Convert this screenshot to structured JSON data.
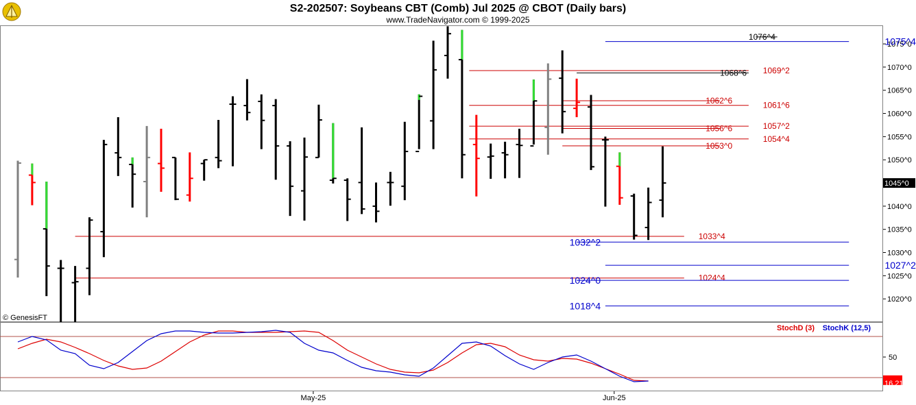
{
  "header": {
    "title": "S2-202507:  Soybeans CBT (Comb) Jul 2025 @ CBOT  (Daily bars)",
    "subtitle": "www.TradeNavigator.com © 1999-2025"
  },
  "copyright": "© GenesisFT",
  "colors": {
    "up": "#000000",
    "gray": "#808080",
    "red": "#ff0000",
    "green": "#33dd33",
    "res": "#cc0000",
    "sup": "#0000cc",
    "stochD": "#dd0000",
    "stochK": "#0000cc"
  },
  "chart_data": [
    {
      "type": "bar",
      "title": "S2-202507:  Soybeans CBT (Comb) Jul 2025 @ CBOT  (Daily bars)",
      "ylim": [
        1015,
        1079
      ],
      "y_ticks": [
        "1075^0",
        "1070^0",
        "1065^0",
        "1060^0",
        "1055^0",
        "1050^0",
        "1045^0",
        "1040^0",
        "1035^0",
        "1030^0",
        "1025^0",
        "1020^0"
      ],
      "x_labels": [
        {
          "label": "May-25",
          "bar": 21
        },
        {
          "label": "Jun-25",
          "bar": 42
        }
      ],
      "last_price": "1045^0",
      "bars": [
        {
          "h": 1049.8,
          "l": 1024.6,
          "o": 1028.5,
          "c": 1049.3,
          "color": "gray"
        },
        {
          "h": 1049.2,
          "l": 1040.2,
          "o": 1046.7,
          "c": 1045.1,
          "color": "red",
          "tip": "green"
        },
        {
          "h": 1045.3,
          "l": 1020.6,
          "o": 1035.1,
          "c": 1027.1,
          "color": "black",
          "tip": "green"
        },
        {
          "h": 1028.4,
          "l": 1014.0,
          "o": 1026.6,
          "c": 1026.6,
          "color": "black"
        },
        {
          "h": 1027.1,
          "l": 1014.0,
          "o": 1023.5,
          "c": 1023.7,
          "color": "black"
        },
        {
          "h": 1037.6,
          "l": 1020.8,
          "o": 1026.6,
          "c": 1037.0,
          "color": "black"
        },
        {
          "h": 1054.3,
          "l": 1029.0,
          "o": 1034.5,
          "c": 1053.3,
          "color": "black"
        },
        {
          "h": 1059.2,
          "l": 1046.5,
          "o": 1051.5,
          "c": 1050.5,
          "color": "black"
        },
        {
          "h": 1050.5,
          "l": 1039.7,
          "o": 1049.0,
          "c": 1046.9,
          "color": "black",
          "tip": "green"
        },
        {
          "h": 1057.3,
          "l": 1037.6,
          "o": 1045.3,
          "c": 1050.5,
          "color": "gray"
        },
        {
          "h": 1056.7,
          "l": 1043.1,
          "o": 1049.2,
          "c": 1048.2,
          "color": "red"
        },
        {
          "h": 1050.5,
          "l": 1041.3,
          "o": 1050.5,
          "c": 1041.5,
          "color": "black"
        },
        {
          "h": 1051.6,
          "l": 1041.0,
          "o": 1042.4,
          "c": 1046.0,
          "color": "red"
        },
        {
          "h": 1050.0,
          "l": 1045.5,
          "o": 1049.2,
          "c": 1050.0,
          "color": "black"
        },
        {
          "h": 1058.6,
          "l": 1048.2,
          "o": 1050.5,
          "c": 1049.8,
          "color": "black"
        },
        {
          "h": 1063.7,
          "l": 1048.6,
          "o": 1062.0,
          "c": 1062.0,
          "color": "black"
        },
        {
          "h": 1067.4,
          "l": 1058.5,
          "o": 1061.7,
          "c": 1060.2,
          "color": "black"
        },
        {
          "h": 1064.1,
          "l": 1052.3,
          "o": 1062.6,
          "c": 1058.5,
          "color": "black"
        },
        {
          "h": 1063.1,
          "l": 1045.7,
          "o": 1061.7,
          "c": 1053.0,
          "color": "black"
        },
        {
          "h": 1054.0,
          "l": 1037.9,
          "o": 1053.0,
          "c": 1044.3,
          "color": "black"
        },
        {
          "h": 1054.8,
          "l": 1036.9,
          "o": 1043.3,
          "c": 1050.6,
          "color": "black"
        },
        {
          "h": 1061.9,
          "l": 1050.5,
          "o": 1050.5,
          "c": 1058.6,
          "color": "black"
        },
        {
          "h": 1057.9,
          "l": 1044.9,
          "o": 1045.6,
          "c": 1046.0,
          "color": "black",
          "tip": "green"
        },
        {
          "h": 1046.0,
          "l": 1036.8,
          "o": 1045.6,
          "c": 1041.5,
          "color": "black"
        },
        {
          "h": 1057.0,
          "l": 1038.3,
          "o": 1045.1,
          "c": 1039.4,
          "color": "black"
        },
        {
          "h": 1045.1,
          "l": 1036.5,
          "o": 1040.0,
          "c": 1038.9,
          "color": "black"
        },
        {
          "h": 1047.4,
          "l": 1040.1,
          "o": 1045.1,
          "c": 1045.1,
          "color": "black"
        },
        {
          "h": 1058.2,
          "l": 1041.3,
          "o": 1044.3,
          "c": 1051.8,
          "color": "black"
        },
        {
          "h": 1064.1,
          "l": 1052.3,
          "o": 1051.8,
          "c": 1063.7,
          "color": "black",
          "tip": "green"
        },
        {
          "h": 1075.7,
          "l": 1052.3,
          "o": 1058.4,
          "c": 1069.4,
          "color": "black"
        },
        {
          "h": 1078.8,
          "l": 1067.5,
          "o": 1072.5,
          "c": 1077.2,
          "color": "black"
        },
        {
          "h": 1078.0,
          "l": 1046.0,
          "o": 1071.6,
          "c": 1051.1,
          "color": "black",
          "tip": "green"
        },
        {
          "h": 1059.7,
          "l": 1042.1,
          "o": 1053.3,
          "c": 1050.3,
          "color": "red"
        },
        {
          "h": 1053.5,
          "l": 1045.9,
          "o": 1050.6,
          "c": 1050.8,
          "color": "black"
        },
        {
          "h": 1053.9,
          "l": 1046.0,
          "o": 1051.5,
          "c": 1051.1,
          "color": "black"
        },
        {
          "h": 1056.7,
          "l": 1046.1,
          "o": 1053.3,
          "c": 1053.1,
          "color": "black"
        },
        {
          "h": 1067.3,
          "l": 1053.3,
          "o": 1053.0,
          "c": 1062.7,
          "color": "black",
          "tip": "green"
        },
        {
          "h": 1070.8,
          "l": 1051.1,
          "o": 1057.0,
          "c": 1067.4,
          "color": "gray"
        },
        {
          "h": 1073.6,
          "l": 1055.7,
          "o": 1067.6,
          "c": 1060.4,
          "color": "black"
        },
        {
          "h": 1067.5,
          "l": 1059.2,
          "o": 1061.1,
          "c": 1062.4,
          "color": "red"
        },
        {
          "h": 1064.0,
          "l": 1047.8,
          "o": 1061.4,
          "c": 1048.5,
          "color": "black"
        },
        {
          "h": 1055.0,
          "l": 1039.9,
          "o": 1054.3,
          "c": 1054.3,
          "color": "black"
        },
        {
          "h": 1051.6,
          "l": 1040.3,
          "o": 1048.6,
          "c": 1041.8,
          "color": "red",
          "tip": "green"
        },
        {
          "h": 1042.7,
          "l": 1032.8,
          "o": 1042.2,
          "c": 1033.7,
          "color": "black"
        },
        {
          "h": 1044.0,
          "l": 1032.7,
          "o": 1035.4,
          "c": 1040.8,
          "color": "black"
        },
        {
          "h": 1052.9,
          "l": 1037.6,
          "o": 1041.3,
          "c": 1045.0,
          "color": "black"
        }
      ],
      "levels": [
        {
          "label": "1076^4",
          "value": 1076.5,
          "kind": "black",
          "from": 53,
          "to": 51.5,
          "text_at": 51,
          "size": "small"
        },
        {
          "label": "1075^4",
          "value": 1075.5,
          "kind": "sup",
          "from": 41,
          "to": 58,
          "text_at": 60.5,
          "size": "big"
        },
        {
          "label": "1069^2",
          "value": 1069.25,
          "kind": "res",
          "from": 31.5,
          "to": 51,
          "text_at": 52,
          "size": "small"
        },
        {
          "label": "1068^6",
          "value": 1068.75,
          "kind": "black",
          "from": 39,
          "to": 51,
          "text_at": 49,
          "size": "small"
        },
        {
          "label": "1062^6",
          "value": 1062.75,
          "kind": "res",
          "from": 38,
          "to": 49,
          "text_at": 48,
          "size": "small"
        },
        {
          "label": "1061^6",
          "value": 1061.75,
          "kind": "res",
          "from": 31.5,
          "to": 51,
          "text_at": 52,
          "size": "small"
        },
        {
          "label": "1057^2",
          "value": 1057.25,
          "kind": "res",
          "from": 31.5,
          "to": 51,
          "text_at": 52,
          "size": "small"
        },
        {
          "label": "1056^6",
          "value": 1056.75,
          "kind": "res",
          "from": 38,
          "to": 49,
          "text_at": 48,
          "size": "small"
        },
        {
          "label": "1054^4",
          "value": 1054.5,
          "kind": "res",
          "from": 31.5,
          "to": 51,
          "text_at": 52,
          "size": "small"
        },
        {
          "label": "1053^0",
          "value": 1053.0,
          "kind": "res",
          "from": 38,
          "to": 49,
          "text_at": 48,
          "size": "small"
        },
        {
          "label": "1033^4",
          "value": 1033.5,
          "kind": "res",
          "from": 4,
          "to": 46.5,
          "text_at": 47.5,
          "size": "small"
        },
        {
          "label": "1032^2",
          "value": 1032.25,
          "kind": "sup",
          "from": 39,
          "to": 58,
          "text_at": 38.5,
          "size": "big"
        },
        {
          "label": "1027^2",
          "value": 1027.25,
          "kind": "sup",
          "from": 41,
          "to": 58,
          "text_at": 60.5,
          "size": "big"
        },
        {
          "label": "1024^4",
          "value": 1024.5,
          "kind": "res",
          "from": 4,
          "to": 46.5,
          "text_at": 47.5,
          "size": "small"
        },
        {
          "label": "1024^0",
          "value": 1024.0,
          "kind": "sup",
          "from": 39,
          "to": 58,
          "text_at": 38.5,
          "size": "big"
        },
        {
          "label": "1018^4",
          "value": 1018.5,
          "kind": "sup",
          "from": 41,
          "to": 58,
          "text_at": 38.5,
          "size": "big"
        }
      ]
    },
    {
      "type": "line",
      "title": "",
      "ylim": [
        0,
        100
      ],
      "y_ticks": [
        "50"
      ],
      "ref_lines": [
        80,
        20
      ],
      "last_value": "16.21",
      "series": [
        {
          "name": "StochD (3)",
          "color": "#dd0000",
          "values": [
            62,
            70,
            76,
            72,
            64,
            55,
            45,
            37,
            32,
            34,
            44,
            58,
            72,
            82,
            88,
            88,
            86,
            86,
            86,
            87,
            88,
            86,
            74,
            60,
            50,
            40,
            32,
            28,
            27,
            31,
            42,
            56,
            68,
            70,
            65,
            53,
            46,
            44,
            48,
            47,
            41,
            33,
            25,
            16,
            15
          ]
        },
        {
          "name": "StochK (12,5)",
          "color": "#0000cc",
          "values": [
            72,
            80,
            75,
            60,
            55,
            38,
            33,
            42,
            58,
            74,
            84,
            88,
            88,
            86,
            85,
            85,
            86,
            87,
            89,
            86,
            70,
            60,
            56,
            45,
            35,
            30,
            28,
            24,
            22,
            34,
            52,
            70,
            72,
            66,
            52,
            40,
            32,
            42,
            50,
            53,
            44,
            33,
            22,
            14,
            15
          ]
        }
      ]
    }
  ]
}
